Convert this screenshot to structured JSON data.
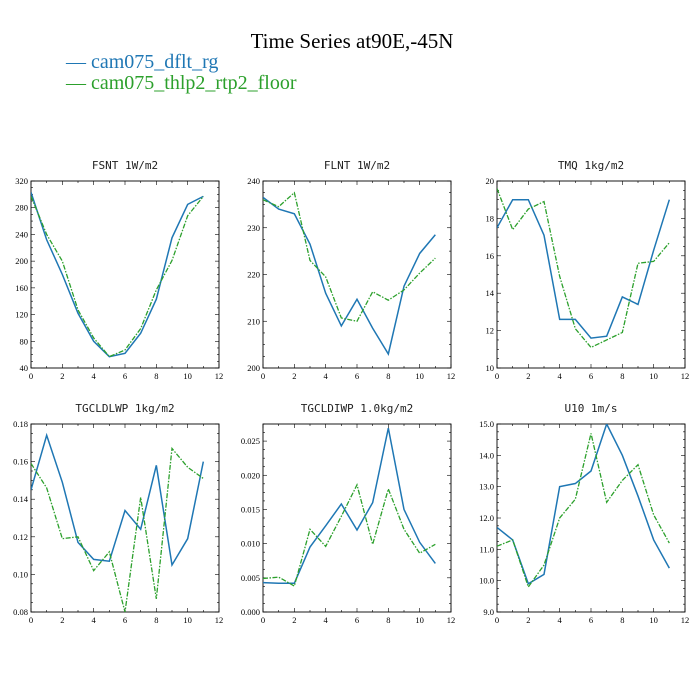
{
  "figure": {
    "title": "Time Series at90E,-45N",
    "legend": [
      {
        "label": "— cam075_dflt_rg",
        "color": "#1f77b4"
      },
      {
        "label": "— cam075_thlp2_rtp2_floor",
        "color": "#2ca02c"
      }
    ]
  },
  "chart_data": [
    {
      "type": "line",
      "title": "FSNT  1W/m2",
      "xlim": [
        0,
        12
      ],
      "xticks": [
        0,
        2,
        4,
        6,
        8,
        10,
        12
      ],
      "ylim": [
        40,
        320
      ],
      "yticks": [
        40,
        80,
        120,
        160,
        200,
        240,
        280,
        320
      ],
      "ytick_labels": [
        "40",
        "80",
        "120",
        "160",
        "200",
        "240",
        "280",
        "320"
      ],
      "x": [
        0,
        1,
        2,
        3,
        4,
        5,
        6,
        7,
        8,
        9,
        10,
        11
      ],
      "series": [
        {
          "name": "cam075_dflt_rg",
          "color": "#1f77b4",
          "dashed": false,
          "values": [
            303,
            232,
            180,
            122,
            80,
            57,
            62,
            92,
            143,
            235,
            285,
            297
          ]
        },
        {
          "name": "cam075_thlp2_rtp2_floor",
          "color": "#2ca02c",
          "dashed": true,
          "values": [
            297,
            240,
            200,
            127,
            85,
            57,
            67,
            99,
            157,
            201,
            268,
            297
          ]
        }
      ]
    },
    {
      "type": "line",
      "title": "FLNT  1W/m2",
      "xlim": [
        0,
        12
      ],
      "xticks": [
        0,
        2,
        4,
        6,
        8,
        10,
        12
      ],
      "ylim": [
        200,
        240
      ],
      "yticks": [
        200,
        210,
        220,
        230,
        240
      ],
      "ytick_labels": [
        "200",
        "210",
        "220",
        "230",
        "240"
      ],
      "x": [
        0,
        1,
        2,
        3,
        4,
        5,
        6,
        7,
        8,
        9,
        10,
        11
      ],
      "series": [
        {
          "name": "cam075_dflt_rg",
          "color": "#1f77b4",
          "dashed": false,
          "values": [
            236.5,
            234,
            233,
            226.5,
            216,
            209,
            214.7,
            208.5,
            203,
            217.5,
            224.5,
            228.5
          ]
        },
        {
          "name": "cam075_thlp2_rtp2_floor",
          "color": "#2ca02c",
          "dashed": true,
          "values": [
            236,
            234.5,
            237.5,
            223,
            219.5,
            210.7,
            210,
            216.3,
            214.5,
            216.7,
            220.3,
            223.5
          ]
        }
      ]
    },
    {
      "type": "line",
      "title": "TMQ  1kg/m2",
      "xlim": [
        0,
        12
      ],
      "xticks": [
        0,
        2,
        4,
        6,
        8,
        10,
        12
      ],
      "ylim": [
        10,
        20
      ],
      "yticks": [
        10,
        12,
        14,
        16,
        18,
        20
      ],
      "ytick_labels": [
        "10",
        "12",
        "14",
        "16",
        "18",
        "20"
      ],
      "x": [
        0,
        1,
        2,
        3,
        4,
        5,
        6,
        7,
        8,
        9,
        10,
        11
      ],
      "series": [
        {
          "name": "cam075_dflt_rg",
          "color": "#1f77b4",
          "dashed": false,
          "values": [
            17.5,
            19.0,
            19.0,
            17.1,
            12.6,
            12.6,
            11.6,
            11.7,
            13.8,
            13.4,
            16.3,
            19.0
          ]
        },
        {
          "name": "cam075_thlp2_rtp2_floor",
          "color": "#2ca02c",
          "dashed": true,
          "values": [
            19.6,
            17.4,
            18.5,
            18.9,
            14.9,
            12.1,
            11.1,
            11.5,
            11.9,
            15.6,
            15.7,
            16.7
          ]
        }
      ]
    },
    {
      "type": "line",
      "title": "TGCLDLWP  1kg/m2",
      "xlim": [
        0,
        12
      ],
      "xticks": [
        0,
        2,
        4,
        6,
        8,
        10,
        12
      ],
      "ylim": [
        0.08,
        0.18
      ],
      "yticks": [
        0.08,
        0.1,
        0.12,
        0.14,
        0.16,
        0.18
      ],
      "ytick_labels": [
        "0.08",
        "0.10",
        "0.12",
        "0.14",
        "0.16",
        "0.18"
      ],
      "x": [
        0,
        1,
        2,
        3,
        4,
        5,
        6,
        7,
        8,
        9,
        10,
        11
      ],
      "series": [
        {
          "name": "cam075_dflt_rg",
          "color": "#1f77b4",
          "dashed": false,
          "values": [
            0.145,
            0.174,
            0.149,
            0.117,
            0.108,
            0.107,
            0.134,
            0.124,
            0.158,
            0.105,
            0.119,
            0.16
          ]
        },
        {
          "name": "cam075_thlp2_rtp2_floor",
          "color": "#2ca02c",
          "dashed": true,
          "values": [
            0.159,
            0.146,
            0.119,
            0.12,
            0.102,
            0.112,
            0.08,
            0.141,
            0.087,
            0.167,
            0.157,
            0.151
          ]
        }
      ]
    },
    {
      "type": "line",
      "title": "TGCLDIWP  1.0kg/m2",
      "xlim": [
        0,
        12
      ],
      "xticks": [
        0,
        2,
        4,
        6,
        8,
        10,
        12
      ],
      "ylim": [
        0.0,
        0.0275
      ],
      "yticks": [
        0.0,
        0.005,
        0.01,
        0.015,
        0.02,
        0.025
      ],
      "ytick_labels": [
        "0.000",
        "0.005",
        "0.010",
        "0.015",
        "0.020",
        "0.025"
      ],
      "x": [
        0,
        1,
        2,
        3,
        4,
        5,
        6,
        7,
        8,
        9,
        10,
        11
      ],
      "series": [
        {
          "name": "cam075_dflt_rg",
          "color": "#1f77b4",
          "dashed": false,
          "values": [
            0.0043,
            0.0042,
            0.0042,
            0.0095,
            0.0126,
            0.0158,
            0.012,
            0.016,
            0.0269,
            0.015,
            0.0102,
            0.0071
          ]
        },
        {
          "name": "cam075_thlp2_rtp2_floor",
          "color": "#2ca02c",
          "dashed": true,
          "values": [
            0.0049,
            0.0051,
            0.0038,
            0.0121,
            0.0096,
            0.014,
            0.0186,
            0.0099,
            0.018,
            0.0121,
            0.0086,
            0.0099
          ]
        }
      ]
    },
    {
      "type": "line",
      "title": "U10  1m/s",
      "xlim": [
        0,
        12
      ],
      "xticks": [
        0,
        2,
        4,
        6,
        8,
        10,
        12
      ],
      "ylim": [
        9.0,
        15.0
      ],
      "yticks": [
        9.0,
        10.0,
        11.0,
        12.0,
        13.0,
        14.0,
        15.0
      ],
      "ytick_labels": [
        "9.0",
        "10.0",
        "11.0",
        "12.0",
        "13.0",
        "14.0",
        "15.0"
      ],
      "x": [
        0,
        1,
        2,
        3,
        4,
        5,
        6,
        7,
        8,
        9,
        10,
        11
      ],
      "series": [
        {
          "name": "cam075_dflt_rg",
          "color": "#1f77b4",
          "dashed": false,
          "values": [
            11.7,
            11.3,
            9.9,
            10.2,
            13.0,
            13.1,
            13.5,
            15.0,
            14.0,
            12.7,
            11.3,
            10.4
          ]
        },
        {
          "name": "cam075_thlp2_rtp2_floor",
          "color": "#2ca02c",
          "dashed": true,
          "values": [
            11.1,
            11.3,
            9.8,
            10.5,
            12.0,
            12.6,
            14.7,
            12.5,
            13.2,
            13.7,
            12.1,
            11.2
          ]
        }
      ]
    }
  ]
}
